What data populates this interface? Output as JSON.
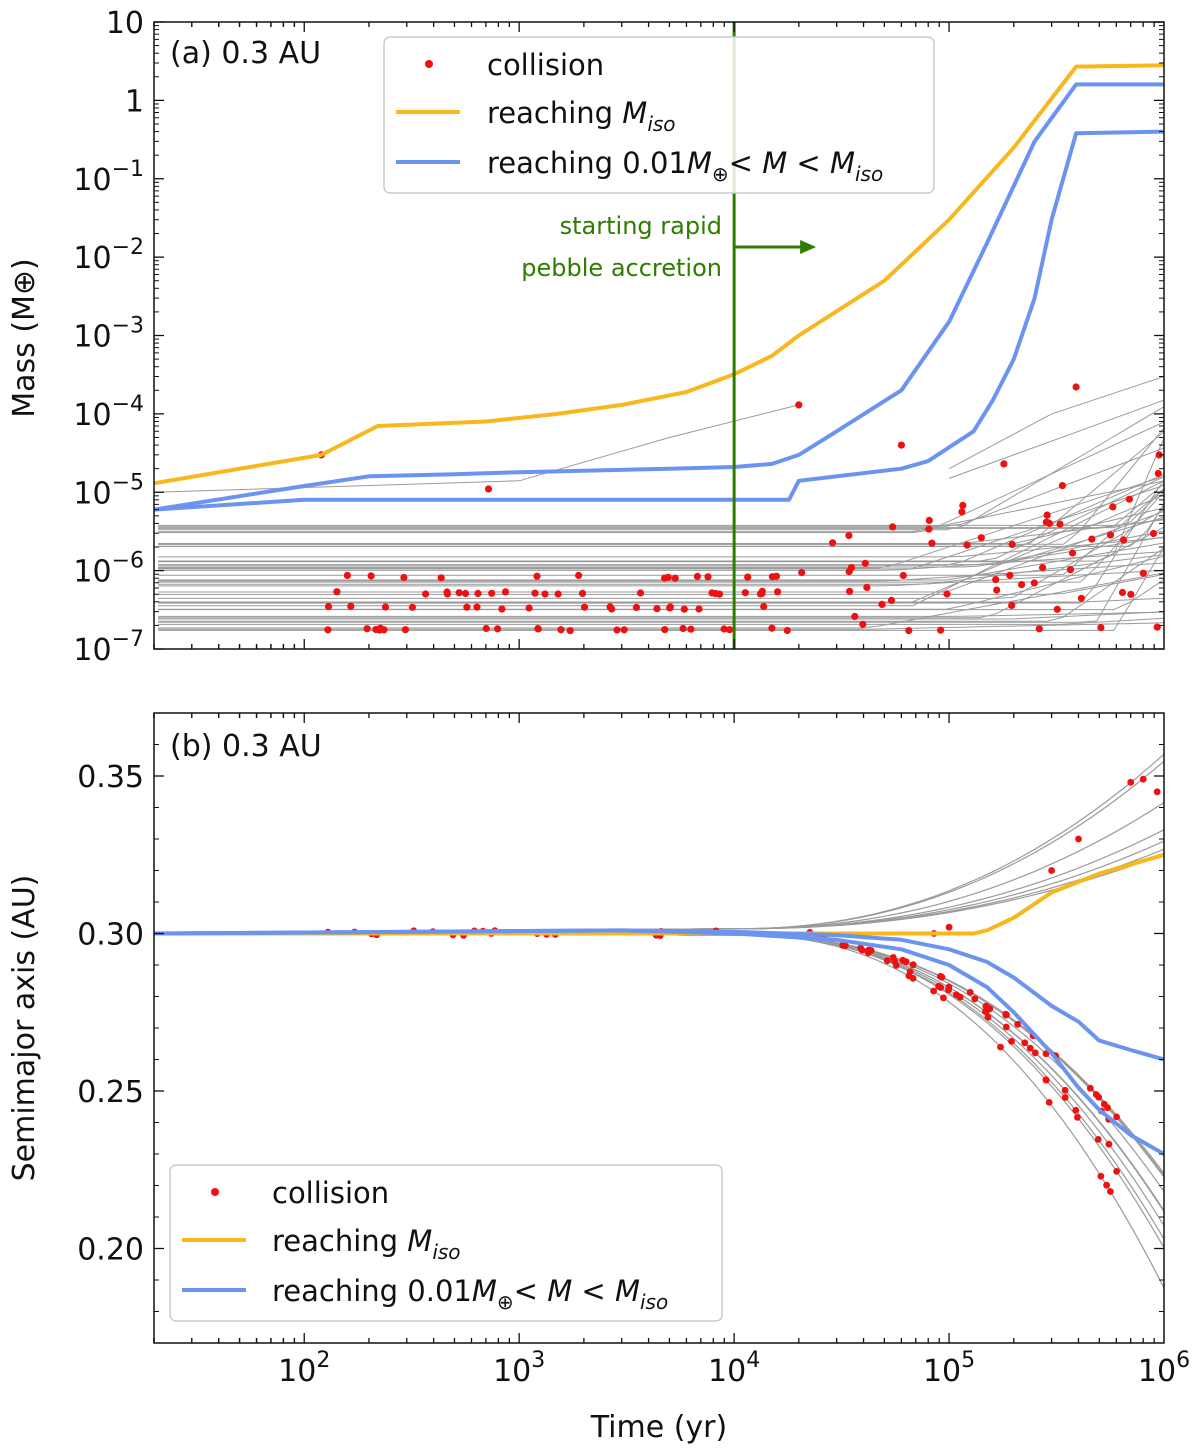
{
  "colors": {
    "collision": "#ee1111",
    "reaching_miso": "#f7b71d",
    "reaching_mid": "#6b94f0",
    "background_tracks": "#9a9a9a",
    "rapid_accretion_line": "#2e7d00"
  },
  "chart_data": [
    {
      "type": "line",
      "panel_label": "(a) 0.3 AU",
      "xscale": "log",
      "yscale": "log",
      "xlim": [
        20,
        1000000
      ],
      "ylim": [
        1e-07,
        10
      ],
      "x_tick_values": [
        100,
        1000,
        10000,
        100000,
        1000000
      ],
      "y_tick_values": [
        1e-07,
        1e-06,
        1e-05,
        0.0001,
        0.001,
        0.01,
        0.1,
        1,
        10
      ],
      "y_tick_labels": [
        {
          "base": "10",
          "exp": "−7"
        },
        {
          "base": "10",
          "exp": "−6"
        },
        {
          "base": "10",
          "exp": "−5"
        },
        {
          "base": "10",
          "exp": "−4"
        },
        {
          "base": "10",
          "exp": "−3"
        },
        {
          "base": "10",
          "exp": "−2"
        },
        {
          "base": "10",
          "exp": "−1"
        },
        {
          "base": "1",
          "exp": ""
        },
        {
          "base": "10",
          "exp": ""
        }
      ],
      "ylabel": "Mass (M⊕)",
      "legend": {
        "position": "top-center",
        "collision": "collision",
        "miso_prefix": "reaching ",
        "miso_var": "M",
        "miso_sub": "iso",
        "mid_prefix": "reaching 0.01",
        "mid_var1": "M",
        "mid_sub1": "⊕",
        "mid_mid": "< ",
        "mid_var2": "M",
        "mid_lt": " < ",
        "mid_var3": "M",
        "mid_sub3": "iso"
      },
      "annotation": {
        "x": 10000,
        "line1": "starting rapid",
        "line2": "pebble accretion"
      },
      "series": [
        {
          "name": "reaching M_iso",
          "color_key": "reaching_miso",
          "x": [
            20,
            120,
            220,
            700,
            1500,
            3000,
            6000,
            10000,
            15000,
            20000,
            50000,
            100000,
            200000,
            390000,
            1000000
          ],
          "y": [
            1.3e-05,
            3e-05,
            7e-05,
            8e-05,
            0.0001,
            0.00013,
            0.00019,
            0.00032,
            0.00055,
            0.001,
            0.005,
            0.03,
            0.25,
            2.7,
            2.8
          ]
        },
        {
          "name": "reaching 0.01 M⊕ < M < M_iso (high)",
          "color_key": "reaching_mid",
          "x": [
            20,
            100,
            200,
            500,
            1000,
            5000,
            10000,
            15000,
            20000,
            30000,
            60000,
            100000,
            150000,
            250000,
            390000,
            1000000
          ],
          "y": [
            6e-06,
            1.2e-05,
            1.6e-05,
            1.7e-05,
            1.8e-05,
            2e-05,
            2.1e-05,
            2.3e-05,
            3e-05,
            6e-05,
            0.0002,
            0.0015,
            0.015,
            0.3,
            1.6,
            1.6
          ]
        },
        {
          "name": "reaching 0.01 M⊕ < M < M_iso (low)",
          "color_key": "reaching_mid",
          "x": [
            20,
            100,
            1000,
            10000,
            18000,
            20000,
            60000,
            80000,
            130000,
            160000,
            200000,
            250000,
            300000,
            390000,
            1000000
          ],
          "y": [
            6e-06,
            8e-06,
            8e-06,
            8e-06,
            8e-06,
            1.4e-05,
            2e-05,
            2.5e-05,
            6e-05,
            0.00015,
            0.0005,
            0.003,
            0.03,
            0.38,
            0.4
          ]
        }
      ]
    },
    {
      "type": "line",
      "panel_label": "(b) 0.3 AU",
      "xscale": "log",
      "yscale": "linear",
      "xlim": [
        20,
        1000000
      ],
      "ylim": [
        0.17,
        0.37
      ],
      "x_tick_values": [
        100,
        1000,
        10000,
        100000,
        1000000
      ],
      "x_tick_labels": [
        {
          "base": "10",
          "exp": "2"
        },
        {
          "base": "10",
          "exp": "3"
        },
        {
          "base": "10",
          "exp": "4"
        },
        {
          "base": "10",
          "exp": "5"
        },
        {
          "base": "10",
          "exp": "6"
        }
      ],
      "y_tick_values": [
        0.2,
        0.25,
        0.3,
        0.35
      ],
      "y_tick_labels": [
        "0.20",
        "0.25",
        "0.30",
        "0.35"
      ],
      "xlabel": "Time (yr)",
      "ylabel": "Semimajor axis (AU)",
      "legend": {
        "position": "bottom-left"
      },
      "series": [
        {
          "name": "reaching M_iso",
          "color_key": "reaching_miso",
          "x": [
            20,
            10000,
            100000,
            130000,
            150000,
            200000,
            300000,
            500000,
            1000000
          ],
          "y": [
            0.3,
            0.3,
            0.3,
            0.3,
            0.301,
            0.305,
            0.313,
            0.319,
            0.325
          ]
        },
        {
          "name": "reaching 0.01 M⊕ < M < M_iso (outer)",
          "color_key": "reaching_mid",
          "x": [
            20,
            3000,
            10000,
            30000,
            60000,
            100000,
            150000,
            200000,
            300000,
            400000,
            500000,
            700000,
            1000000
          ],
          "y": [
            0.3,
            0.301,
            0.3005,
            0.2995,
            0.298,
            0.295,
            0.291,
            0.286,
            0.277,
            0.272,
            0.266,
            0.263,
            0.26
          ]
        },
        {
          "name": "reaching 0.01 M⊕ < M < M_iso (inner)",
          "color_key": "reaching_mid",
          "x": [
            20,
            3000,
            10000,
            30000,
            60000,
            100000,
            150000,
            200000,
            300000,
            400000,
            500000,
            700000,
            1000000
          ],
          "y": [
            0.3,
            0.301,
            0.3,
            0.298,
            0.295,
            0.29,
            0.283,
            0.275,
            0.262,
            0.251,
            0.244,
            0.236,
            0.23
          ]
        }
      ]
    }
  ]
}
